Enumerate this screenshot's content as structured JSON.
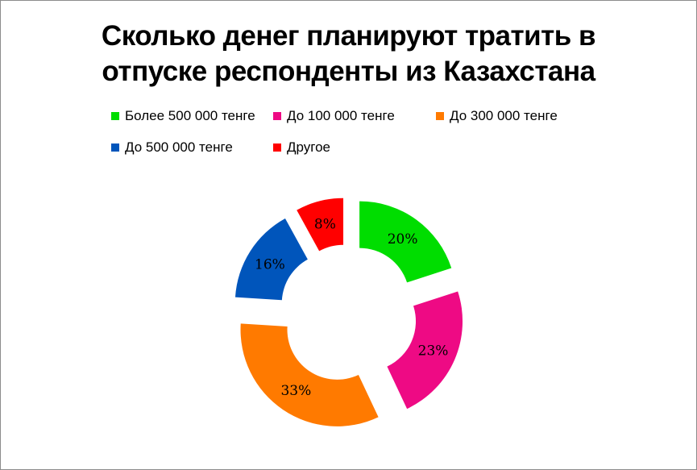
{
  "chart_data": {
    "type": "pie",
    "variant": "exploded-doughnut",
    "title": [
      "Сколько денег планируют тратить в",
      "отпуске респонденты из Казахстана"
    ],
    "legend_position": "top",
    "slices": [
      {
        "label": "Более 500 000 тенге",
        "value": 20,
        "data_label": "20%",
        "color": "#00DD00"
      },
      {
        "label": "До 100 000 тенге",
        "value": 23,
        "data_label": "23%",
        "color": "#EE0A84"
      },
      {
        "label": "До 300 000 тенге",
        "value": 33,
        "data_label": "33%",
        "color": "#FF7A00"
      },
      {
        "label": "До 500 000 тенге",
        "value": 16,
        "data_label": "16%",
        "color": "#0055BB"
      },
      {
        "label": "Другое",
        "value": 8,
        "data_label": "8%",
        "color": "#FF0000"
      }
    ]
  }
}
